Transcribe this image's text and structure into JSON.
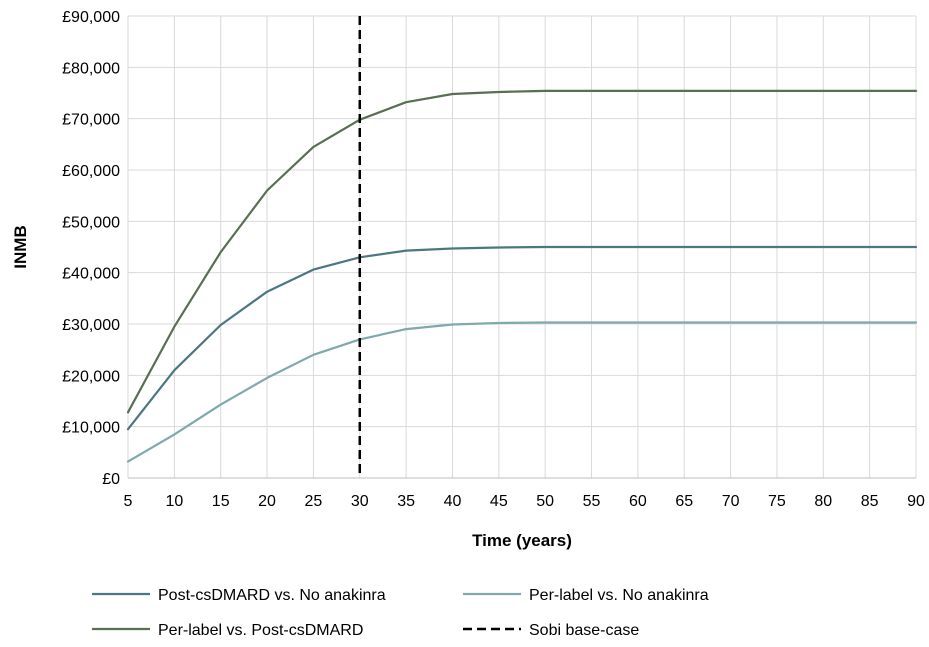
{
  "chart_data": {
    "type": "line",
    "title": "",
    "xlabel": "Time (years)",
    "ylabel": "INMB",
    "x": [
      5,
      10,
      15,
      20,
      25,
      30,
      35,
      40,
      45,
      50,
      55,
      60,
      65,
      70,
      75,
      80,
      85,
      90
    ],
    "xlim": [
      5,
      90
    ],
    "ylim": [
      0,
      90000
    ],
    "yticks": [
      "£0",
      "£10,000",
      "£20,000",
      "£30,000",
      "£40,000",
      "£50,000",
      "£60,000",
      "£70,000",
      "£80,000",
      "£90,000"
    ],
    "xticks": [
      "5",
      "10",
      "15",
      "20",
      "25",
      "30",
      "35",
      "40",
      "45",
      "50",
      "55",
      "60",
      "65",
      "70",
      "75",
      "80",
      "85",
      "90"
    ],
    "grid": true,
    "legend_position": "bottom",
    "series": [
      {
        "name": "Post-csDMARD vs. No anakinra",
        "color": "#4d7683",
        "dash": "solid",
        "values": [
          9500,
          21000,
          29800,
          36300,
          40600,
          43000,
          44300,
          44700,
          44900,
          45000,
          45000,
          45000,
          45000,
          45000,
          45000,
          45000,
          45000,
          45000
        ]
      },
      {
        "name": "Per-label vs. No anakinra",
        "color": "#7fa9ac",
        "dash": "solid",
        "values": [
          3200,
          8500,
          14300,
          19500,
          24000,
          27000,
          29000,
          29900,
          30200,
          30300,
          30300,
          30300,
          30300,
          30300,
          30300,
          30300,
          30300,
          30300
        ]
      },
      {
        "name": "Per-label vs. Post-csDMARD",
        "color": "#586f52",
        "dash": "solid",
        "values": [
          12800,
          29500,
          44000,
          56000,
          64500,
          69800,
          73200,
          74800,
          75200,
          75400,
          75400,
          75400,
          75400,
          75400,
          75400,
          75400,
          75400,
          75400
        ]
      }
    ],
    "reference_line": {
      "name": "Sobi base-case",
      "x": 30,
      "color": "#000000",
      "dash": "dashed"
    }
  }
}
